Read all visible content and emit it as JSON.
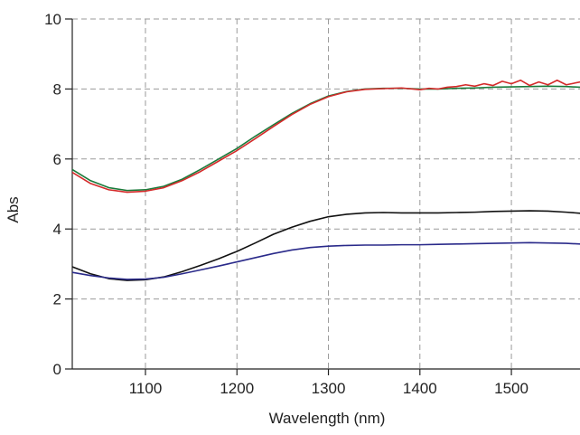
{
  "chart_data": {
    "type": "line",
    "title": "",
    "xlabel": "Wavelength (nm)",
    "ylabel": "Abs",
    "xlim": [
      1020,
      1575
    ],
    "ylim": [
      0,
      10
    ],
    "x_ticks": [
      1100,
      1200,
      1300,
      1400,
      1500
    ],
    "y_ticks": [
      0,
      2,
      4,
      6,
      8,
      10
    ],
    "grid": true,
    "legend": "none",
    "series": [
      {
        "color": "#1a7a3a",
        "x": [
          1020,
          1040,
          1060,
          1080,
          1100,
          1120,
          1140,
          1160,
          1180,
          1200,
          1220,
          1240,
          1260,
          1280,
          1300,
          1320,
          1340,
          1360,
          1380,
          1400,
          1420,
          1440,
          1460,
          1480,
          1500,
          1520,
          1540,
          1560,
          1575
        ],
        "y": [
          5.7,
          5.38,
          5.18,
          5.1,
          5.12,
          5.22,
          5.42,
          5.7,
          6.0,
          6.3,
          6.65,
          6.98,
          7.3,
          7.58,
          7.8,
          7.93,
          8.0,
          8.02,
          8.02,
          8.0,
          8.0,
          8.02,
          8.03,
          8.05,
          8.06,
          8.07,
          8.08,
          8.07,
          8.05
        ]
      },
      {
        "color": "#d42a2a",
        "x": [
          1020,
          1040,
          1060,
          1080,
          1100,
          1120,
          1140,
          1160,
          1180,
          1200,
          1220,
          1240,
          1260,
          1280,
          1300,
          1320,
          1340,
          1360,
          1380,
          1400,
          1410,
          1420,
          1430,
          1440,
          1450,
          1460,
          1470,
          1480,
          1490,
          1500,
          1510,
          1520,
          1530,
          1540,
          1550,
          1560,
          1575
        ],
        "y": [
          5.62,
          5.3,
          5.12,
          5.05,
          5.08,
          5.18,
          5.38,
          5.64,
          5.94,
          6.24,
          6.58,
          6.93,
          7.27,
          7.56,
          7.78,
          7.92,
          7.99,
          8.01,
          8.03,
          7.98,
          8.02,
          8.0,
          8.05,
          8.07,
          8.12,
          8.08,
          8.15,
          8.1,
          8.22,
          8.15,
          8.25,
          8.1,
          8.2,
          8.12,
          8.25,
          8.12,
          8.2
        ]
      },
      {
        "color": "#111111",
        "x": [
          1020,
          1040,
          1060,
          1080,
          1100,
          1120,
          1140,
          1160,
          1180,
          1200,
          1220,
          1240,
          1260,
          1280,
          1300,
          1320,
          1340,
          1360,
          1380,
          1400,
          1420,
          1440,
          1460,
          1480,
          1500,
          1520,
          1540,
          1560,
          1575
        ],
        "y": [
          2.92,
          2.72,
          2.58,
          2.53,
          2.55,
          2.63,
          2.78,
          2.96,
          3.15,
          3.36,
          3.6,
          3.85,
          4.05,
          4.22,
          4.35,
          4.42,
          4.46,
          4.47,
          4.46,
          4.46,
          4.46,
          4.47,
          4.48,
          4.5,
          4.51,
          4.52,
          4.51,
          4.48,
          4.45
        ]
      },
      {
        "color": "#2a2a8a",
        "x": [
          1020,
          1040,
          1060,
          1080,
          1100,
          1120,
          1140,
          1160,
          1180,
          1200,
          1220,
          1240,
          1260,
          1280,
          1300,
          1320,
          1340,
          1360,
          1380,
          1400,
          1420,
          1440,
          1460,
          1480,
          1500,
          1520,
          1540,
          1560,
          1575
        ],
        "y": [
          2.76,
          2.67,
          2.6,
          2.56,
          2.57,
          2.62,
          2.72,
          2.83,
          2.94,
          3.06,
          3.18,
          3.3,
          3.4,
          3.47,
          3.51,
          3.53,
          3.54,
          3.54,
          3.55,
          3.55,
          3.56,
          3.57,
          3.58,
          3.59,
          3.6,
          3.61,
          3.6,
          3.59,
          3.57
        ]
      }
    ]
  }
}
